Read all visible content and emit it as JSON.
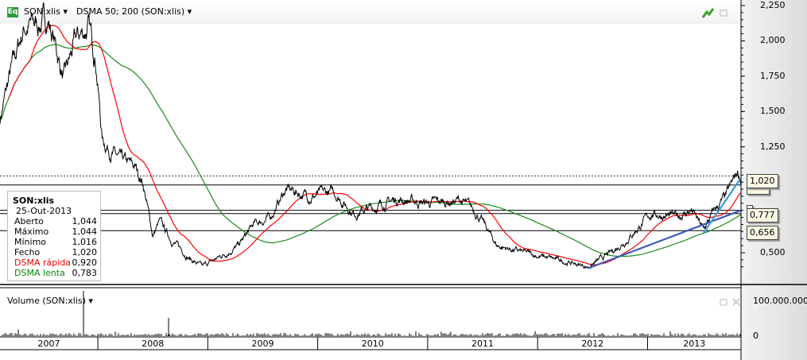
{
  "header": {
    "eq_icon": "Eq",
    "symbol": "SON:xlis",
    "indicator": "DSMA 50; 200 (SON:xlis)"
  },
  "legend": {
    "title": "SON:xlis",
    "date": "25-Out-2013",
    "rows": [
      {
        "label": "Aberto",
        "value": "1,044"
      },
      {
        "label": "Máximo",
        "value": "1,044"
      },
      {
        "label": "Mínimo",
        "value": "1,016"
      },
      {
        "label": "Fecho",
        "value": "1,020"
      },
      {
        "label": "DSMA rápida",
        "value": "0,920"
      },
      {
        "label": "DSMA lenta",
        "value": "0,783"
      }
    ]
  },
  "tags": {
    "last": "1,020",
    "level1": "0,777",
    "level2": "0,656"
  },
  "volume": {
    "title": "Volume (SON:xlis)",
    "axis_max": "100.000.000",
    "axis_zero": "0"
  },
  "colors": {
    "price": "#000000",
    "fast": "#ff0000",
    "slow": "#1a8a1a",
    "trend1": "#3b5bb5",
    "trend2": "#3a9ad9"
  },
  "chart_data": {
    "type": "line",
    "ylim": [
      0.3,
      2.28
    ],
    "yticks": [
      "2,250",
      "2,000",
      "1,750",
      "1,500",
      "1,250",
      "0,500"
    ],
    "ytick_values": [
      2.25,
      2.0,
      1.75,
      1.5,
      1.25,
      0.5
    ],
    "xlim": [
      2007.11,
      2013.85
    ],
    "years": [
      "2007",
      "2008",
      "2009",
      "2010",
      "2011",
      "2012",
      "2013"
    ],
    "price": [
      [
        2007.11,
        1.45
      ],
      [
        2007.2,
        1.75
      ],
      [
        2007.33,
        2.1
      ],
      [
        2007.45,
        2.12
      ],
      [
        2007.55,
        2.15
      ],
      [
        2007.62,
        1.95
      ],
      [
        2007.69,
        1.72
      ],
      [
        2007.8,
        2.0
      ],
      [
        2007.91,
        2.1
      ],
      [
        2007.98,
        1.9
      ],
      [
        2008.04,
        1.3
      ],
      [
        2008.2,
        1.15
      ],
      [
        2008.34,
        1.1
      ],
      [
        2008.41,
        1.0
      ],
      [
        2008.5,
        0.62
      ],
      [
        2008.56,
        0.72
      ],
      [
        2008.66,
        0.6
      ],
      [
        2008.85,
        0.45
      ],
      [
        2008.95,
        0.4
      ],
      [
        2009.13,
        0.48
      ],
      [
        2009.28,
        0.55
      ],
      [
        2009.42,
        0.7
      ],
      [
        2009.57,
        0.75
      ],
      [
        2009.71,
        0.95
      ],
      [
        2009.93,
        0.9
      ],
      [
        2010.15,
        0.93
      ],
      [
        2010.33,
        0.78
      ],
      [
        2010.51,
        0.82
      ],
      [
        2010.72,
        0.88
      ],
      [
        2011.01,
        0.85
      ],
      [
        2011.3,
        0.87
      ],
      [
        2011.45,
        0.78
      ],
      [
        2011.63,
        0.55
      ],
      [
        2011.88,
        0.5
      ],
      [
        2012.17,
        0.45
      ],
      [
        2012.46,
        0.4
      ],
      [
        2012.67,
        0.5
      ],
      [
        2012.82,
        0.6
      ],
      [
        2013.04,
        0.78
      ],
      [
        2013.25,
        0.75
      ],
      [
        2013.4,
        0.8
      ],
      [
        2013.51,
        0.66
      ],
      [
        2013.61,
        0.8
      ],
      [
        2013.72,
        0.9
      ],
      [
        2013.82,
        1.07
      ],
      [
        2013.85,
        1.02
      ]
    ],
    "fast_period": 50,
    "slow_period": 200,
    "hlines": [
      {
        "value": 1.044,
        "style": "dotted"
      },
      {
        "value": 0.98,
        "style": "solid"
      },
      {
        "value": 0.8,
        "style": "solid"
      },
      {
        "value": 0.777,
        "style": "solid"
      },
      {
        "value": 0.656,
        "style": "solid"
      }
    ],
    "trendlines": [
      {
        "from": [
          2012.46,
          0.39
        ],
        "to": [
          2013.85,
          0.8
        ]
      },
      {
        "from": [
          2013.51,
          0.64
        ],
        "to": [
          2013.85,
          1.03
        ]
      }
    ]
  }
}
